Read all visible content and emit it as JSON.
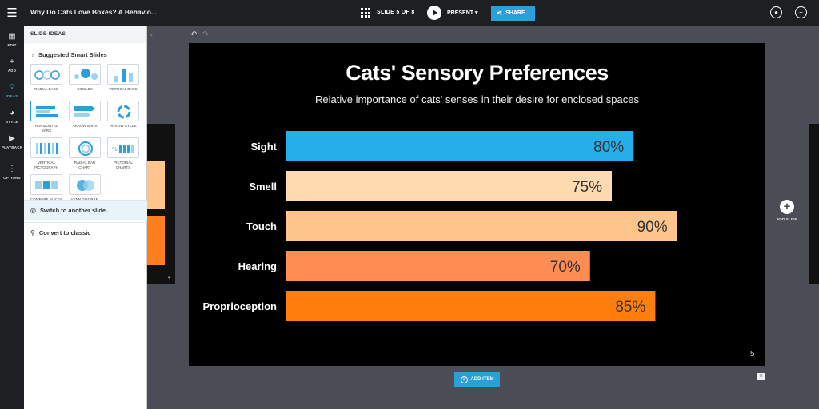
{
  "topbar": {
    "doc_title": "Why Do Cats Love Boxes? A Behavio...",
    "slide_counter": "SLIDE 5 OF 8",
    "present_label": "PRESENT ▾",
    "share_label": "SHARE..."
  },
  "rail": {
    "items": [
      {
        "label": "EDIT",
        "icon": "edit-grid-icon"
      },
      {
        "label": "ADD",
        "icon": "plus-icon"
      },
      {
        "label": "IDEAS",
        "icon": "lightbulb-icon"
      },
      {
        "label": "STYLE",
        "icon": "palette-icon"
      },
      {
        "label": "PLAYBACK",
        "icon": "play-circle-icon"
      },
      {
        "label": "OPTIONS",
        "icon": "more-vertical-icon"
      }
    ]
  },
  "panel": {
    "header": "SLIDE IDEAS",
    "subheader": "Suggested Smart Slides",
    "thumbs": [
      {
        "label": "RADIAL BARS"
      },
      {
        "label": "CIRCLES"
      },
      {
        "label": "VERTICAL BARS"
      },
      {
        "label": "HORIZONTAL BARS"
      },
      {
        "label": "ARROW BARS"
      },
      {
        "label": "ARROW CYCLE"
      },
      {
        "label": "VERTICAL PICTOGRAPH"
      },
      {
        "label": "RADIAL BAR CHART"
      },
      {
        "label": "PICTORIAL CHARTS"
      },
      {
        "label": "COMPARE SLICES"
      },
      {
        "label": "VENN DIAGRAM"
      }
    ],
    "switch_label": "Switch to another slide...",
    "convert_label": "Convert to classic"
  },
  "slide": {
    "title": "Cats' Sensory Preferences",
    "subtitle": "Relative importance of cats' senses in their desire for enclosed spaces",
    "number": "5"
  },
  "chart_data": {
    "type": "bar",
    "orientation": "horizontal",
    "title": "Cats' Sensory Preferences",
    "subtitle": "Relative importance of cats' senses in their desire for enclosed spaces",
    "categories": [
      "Sight",
      "Smell",
      "Touch",
      "Hearing",
      "Proprioception"
    ],
    "values": [
      80,
      75,
      90,
      70,
      85
    ],
    "value_labels": [
      "80%",
      "75%",
      "90%",
      "70%",
      "85%"
    ],
    "colors": [
      "#24aeea",
      "#ffd9b0",
      "#ffc58a",
      "#ff8c52",
      "#ff7f0e"
    ],
    "xlim": [
      0,
      100
    ]
  },
  "actions": {
    "add_slide_label": "ADD SLIDE",
    "add_item_label": "ADD ITEM"
  }
}
